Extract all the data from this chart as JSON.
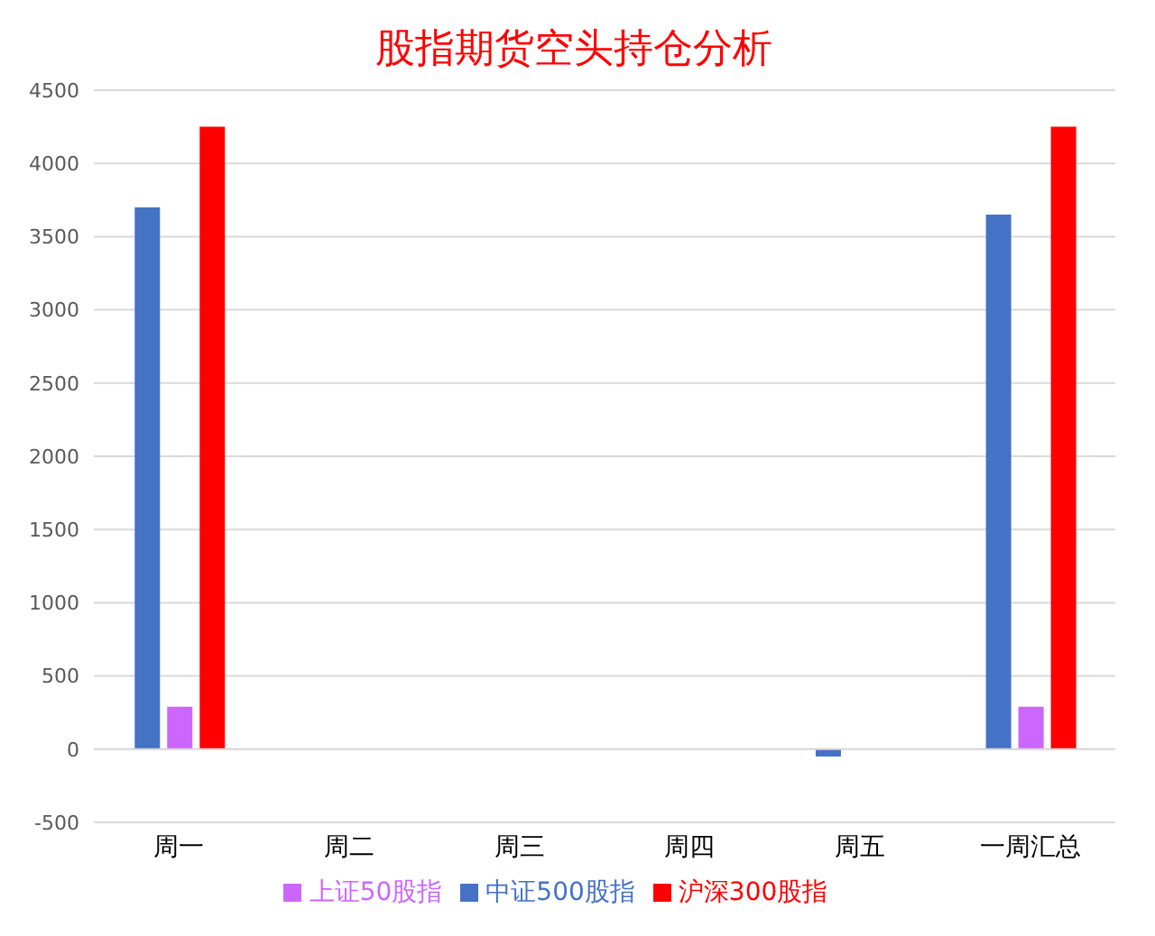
{
  "chart_data": {
    "type": "bar",
    "title": "股指期货空头持仓分析",
    "categories": [
      "周一",
      "周二",
      "周三",
      "周四",
      "周五",
      "一周汇总"
    ],
    "series": [
      {
        "name": "中证500股指",
        "color": "#4472c4",
        "values": [
          3700,
          null,
          null,
          null,
          -50,
          3650
        ]
      },
      {
        "name": "上证50股指",
        "color": "#cc66ff",
        "values": [
          290,
          null,
          null,
          null,
          null,
          290
        ]
      },
      {
        "name": "沪深300股指",
        "color": "#ff0000",
        "values": [
          4250,
          null,
          null,
          null,
          null,
          4250
        ]
      }
    ],
    "ylim": [
      -500,
      4500
    ],
    "yticks": [
      -500,
      0,
      500,
      1000,
      1500,
      2000,
      2500,
      3000,
      3500,
      4000,
      4500
    ],
    "grid": "y",
    "legend": "bottom"
  }
}
